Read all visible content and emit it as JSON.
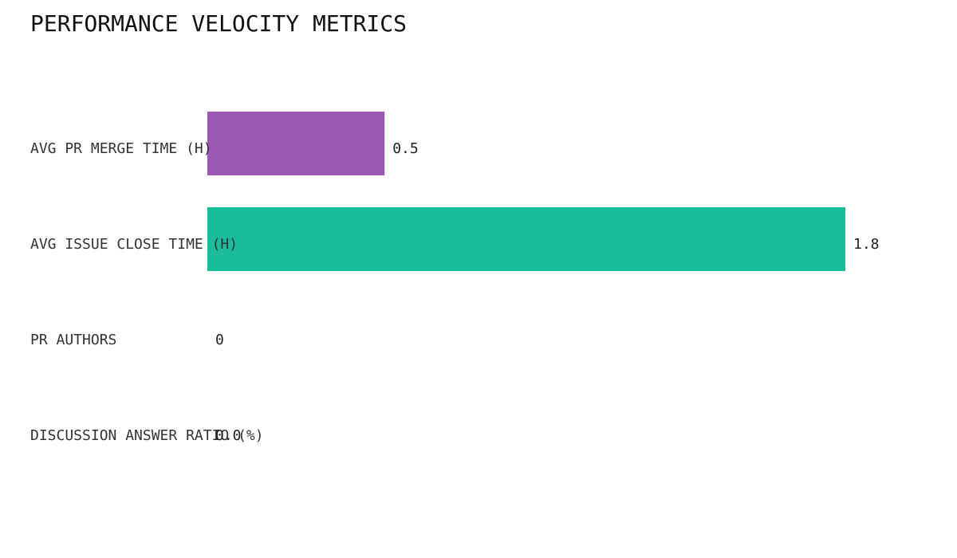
{
  "chart_data": {
    "type": "bar",
    "orientation": "horizontal",
    "title": "PERFORMANCE VELOCITY METRICS",
    "categories": [
      "AVG PR MERGE TIME (H)",
      "AVG ISSUE CLOSE TIME (H)",
      "PR AUTHORS",
      "DISCUSSION ANSWER RATIO (%)"
    ],
    "values": [
      0.5,
      1.8,
      0,
      0
    ],
    "value_labels": [
      "0.5",
      "1.8",
      "0",
      "0.0"
    ],
    "colors": [
      "#9b59b6",
      "#1abc9c"
    ]
  }
}
